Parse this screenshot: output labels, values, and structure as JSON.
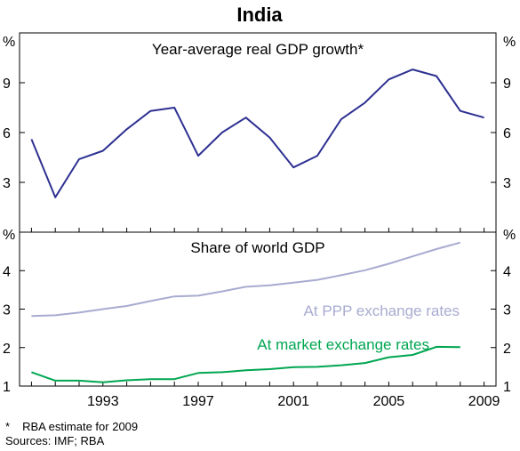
{
  "chart_data": [
    {
      "type": "line",
      "title": "India",
      "subtitle": "Year-average real GDP growth*",
      "ylabel_left": "%",
      "ylabel_right": "%",
      "ylim": [
        0,
        12
      ],
      "yticks": [
        3,
        6,
        9
      ],
      "xlim": [
        1989.5,
        2009.5
      ],
      "xticks": [
        1993,
        1997,
        2001,
        2005,
        2009
      ],
      "grid": false,
      "series": [
        {
          "color": "#2e3192",
          "x": [
            1990,
            1991,
            1992,
            1993,
            1994,
            1995,
            1996,
            1997,
            1998,
            1999,
            2000,
            2001,
            2002,
            2003,
            2004,
            2005,
            2006,
            2007,
            2008,
            2009
          ],
          "values": [
            5.6,
            2.1,
            4.4,
            4.9,
            6.2,
            7.3,
            7.5,
            4.6,
            6.0,
            6.9,
            5.7,
            3.9,
            4.6,
            6.8,
            7.8,
            9.2,
            9.8,
            9.4,
            7.3,
            6.9
          ]
        }
      ]
    },
    {
      "type": "line",
      "subtitle": "Share of world GDP",
      "ylabel_left": "%",
      "ylabel_right": "%",
      "ylim": [
        1,
        5
      ],
      "yticks": [
        1,
        2,
        3,
        4
      ],
      "xlim": [
        1989.5,
        2009.5
      ],
      "xticks": [
        1993,
        1997,
        2001,
        2005,
        2009
      ],
      "xtick_labels": [
        "1993",
        "1997",
        "2001",
        "2005",
        "2009"
      ],
      "grid": false,
      "series": [
        {
          "name": "At PPP exchange rates",
          "color": "#a8abd0",
          "x": [
            1990,
            1991,
            1992,
            1993,
            1994,
            1995,
            1996,
            1997,
            1998,
            1999,
            2000,
            2001,
            2002,
            2003,
            2004,
            2005,
            2006,
            2007,
            2008
          ],
          "values": [
            2.82,
            2.84,
            2.91,
            3.0,
            3.08,
            3.21,
            3.33,
            3.35,
            3.46,
            3.58,
            3.62,
            3.69,
            3.76,
            3.88,
            4.01,
            4.18,
            4.37,
            4.56,
            4.73
          ]
        },
        {
          "name": "At market exchange rates",
          "color": "#00a651",
          "x": [
            1990,
            1991,
            1992,
            1993,
            1994,
            1995,
            1996,
            1997,
            1998,
            1999,
            2000,
            2001,
            2002,
            2003,
            2004,
            2005,
            2006,
            2007,
            2008
          ],
          "values": [
            1.36,
            1.14,
            1.14,
            1.1,
            1.15,
            1.18,
            1.18,
            1.34,
            1.36,
            1.41,
            1.44,
            1.49,
            1.5,
            1.54,
            1.6,
            1.75,
            1.81,
            2.02,
            2.01
          ]
        }
      ]
    }
  ],
  "footnotes": {
    "asterisk": "*",
    "estimate": "RBA estimate for 2009",
    "sources": "Sources: IMF; RBA"
  }
}
